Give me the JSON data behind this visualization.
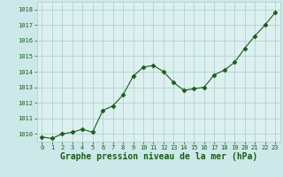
{
  "x": [
    0,
    1,
    2,
    3,
    4,
    5,
    6,
    7,
    8,
    9,
    10,
    11,
    12,
    13,
    14,
    15,
    16,
    17,
    18,
    19,
    20,
    21,
    22,
    23
  ],
  "y": [
    1009.8,
    1009.7,
    1010.0,
    1010.1,
    1010.3,
    1010.1,
    1011.5,
    1011.8,
    1012.5,
    1013.7,
    1014.3,
    1014.4,
    1014.0,
    1013.3,
    1012.8,
    1012.9,
    1013.0,
    1013.8,
    1014.1,
    1014.6,
    1015.5,
    1016.3,
    1017.0,
    1017.8
  ],
  "ylim": [
    1009.5,
    1018.5
  ],
  "yticks": [
    1010,
    1011,
    1012,
    1013,
    1014,
    1015,
    1016,
    1017,
    1018
  ],
  "xlim": [
    -0.5,
    23.5
  ],
  "xticks": [
    0,
    1,
    2,
    3,
    4,
    5,
    6,
    7,
    8,
    9,
    10,
    11,
    12,
    13,
    14,
    15,
    16,
    17,
    18,
    19,
    20,
    21,
    22,
    23
  ],
  "line_color": "#1a5c1a",
  "marker": "D",
  "marker_size": 2.5,
  "bg_color": "#cce8e8",
  "plot_bg_color": "#ddf0f0",
  "grid_color": "#aacccc",
  "xlabel": "Graphe pression niveau de la mer (hPa)",
  "xlabel_color": "#1a5c1a",
  "tick_color": "#1a5c1a",
  "tick_fontsize": 5.0,
  "xlabel_fontsize": 7.0,
  "linewidth": 0.8
}
